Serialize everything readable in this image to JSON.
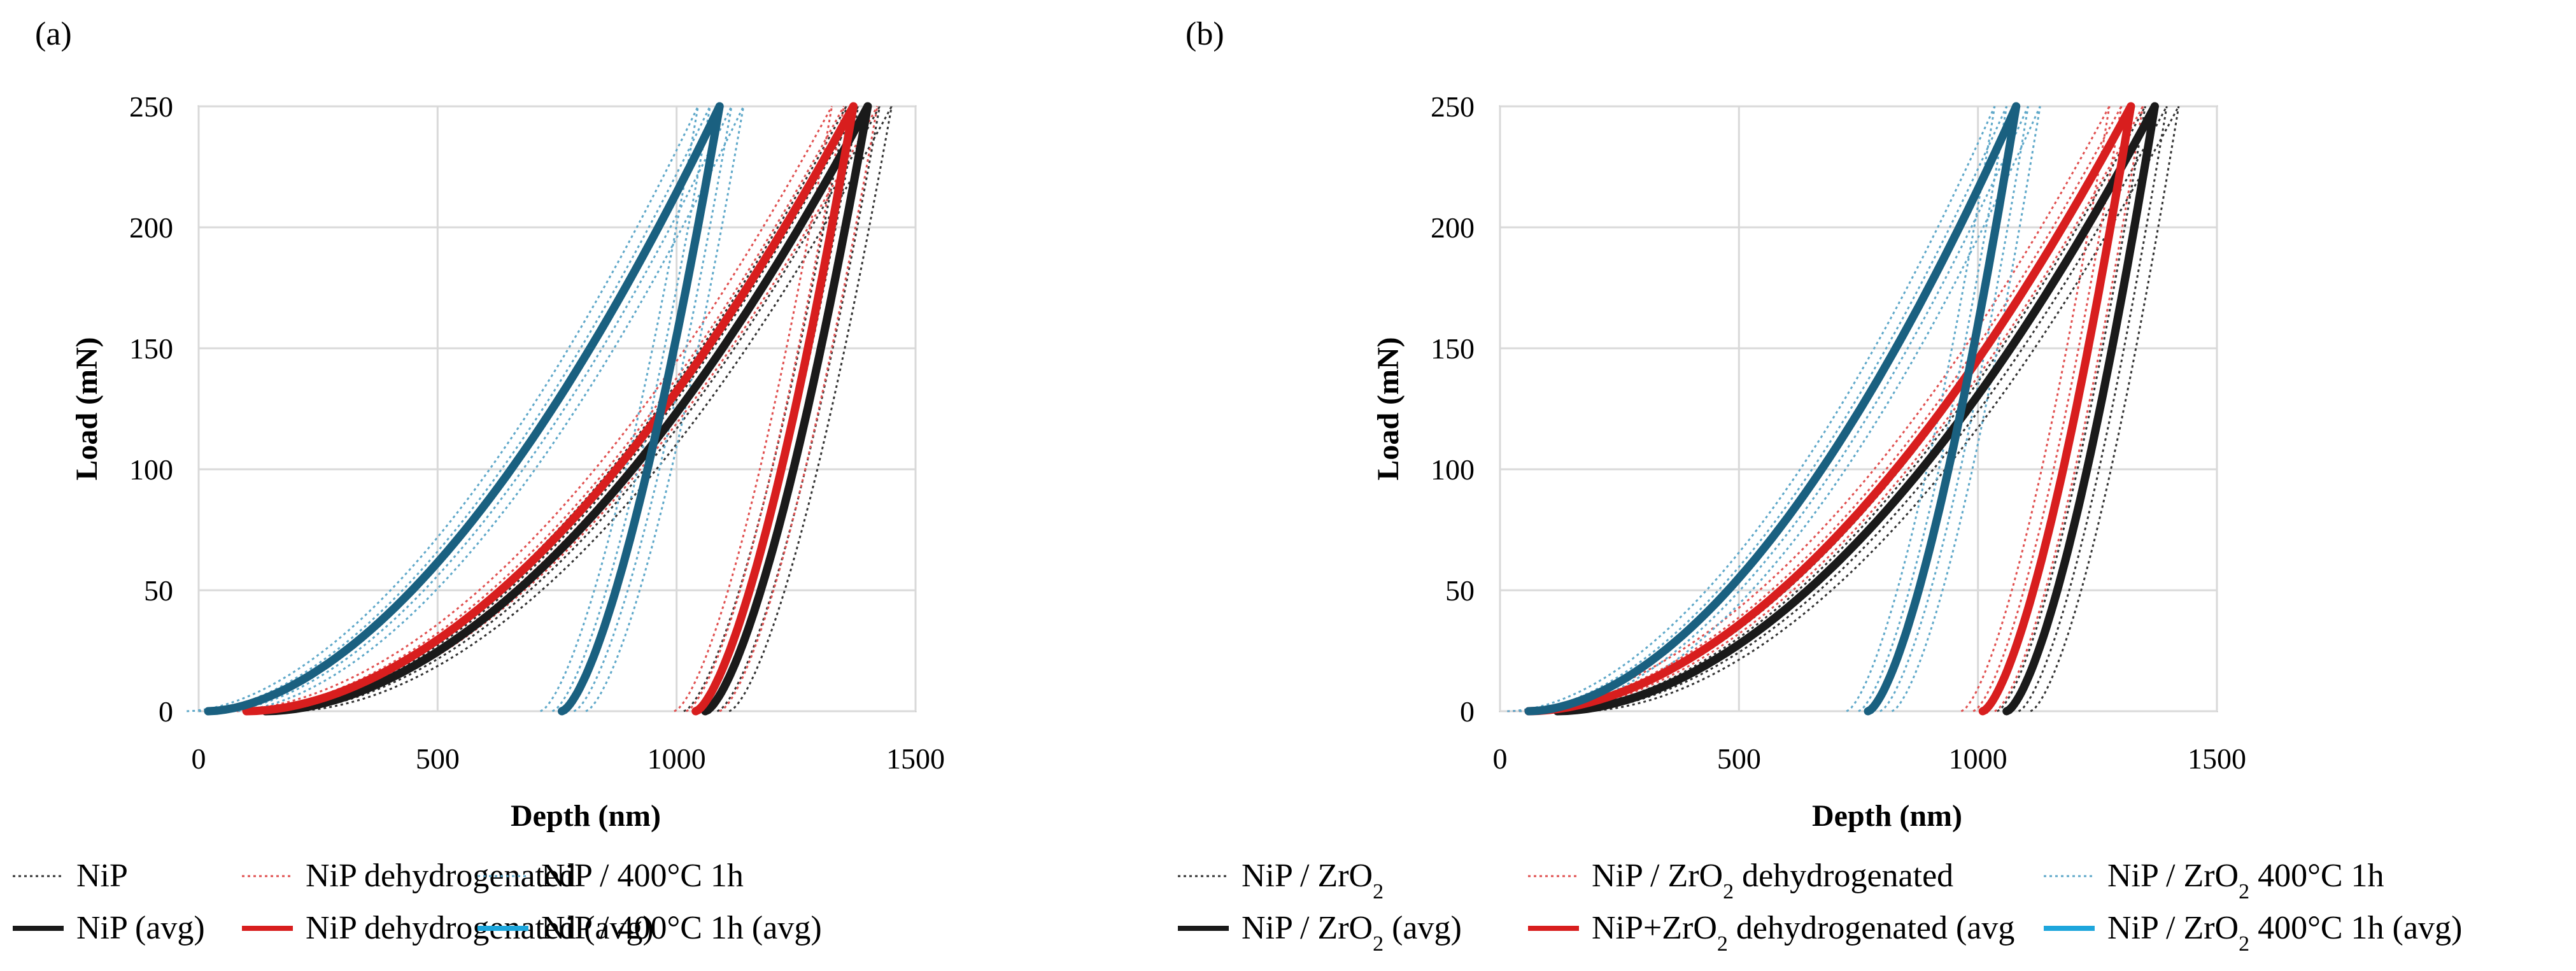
{
  "colors": {
    "NiP": "#1a1a1a",
    "NiP_dehydrogenated": "#d81e1e",
    "NiP_400C": "#1a6080",
    "NiP_400C_thin": "#5fa8c9",
    "NiP_400C_legend": "#1ea6dc",
    "NiP_dehydrogenated_thin": "#e05050",
    "NiP_thin": "#333333",
    "grid": "#d9d9d9",
    "axis": "#bfbfbf"
  },
  "chart_data": [
    {
      "panel_label": "(a)",
      "type": "line",
      "xlabel": "Depth (nm)",
      "ylabel": "Load (mN)",
      "xlim": [
        0,
        1500
      ],
      "ylim": [
        0,
        250
      ],
      "x_ticks": [
        "0",
        "500",
        "1000",
        "1500"
      ],
      "y_ticks": [
        "0",
        "50",
        "100",
        "150",
        "200",
        "250"
      ],
      "grid": true,
      "series": [
        {
          "name": "NiP (avg)",
          "color_key": "NiP",
          "loading": {
            "h0": 140,
            "hmax": 1400,
            "pmax": 250,
            "exp": 1.85
          },
          "unloading": {
            "hf": 1060,
            "hmax": 1400,
            "pmax": 250,
            "m": 1.5
          }
        },
        {
          "name": "NiP dehydrogenated (avg)",
          "color_key": "NiP_dehydrogenated",
          "loading": {
            "h0": 100,
            "hmax": 1370,
            "pmax": 250,
            "exp": 1.85
          },
          "unloading": {
            "hf": 1040,
            "hmax": 1370,
            "pmax": 250,
            "m": 1.5
          }
        },
        {
          "name": "NiP / 400°C 1h (avg)",
          "color_key": "NiP_400C",
          "loading": {
            "h0": 20,
            "hmax": 1090,
            "pmax": 250,
            "exp": 1.75
          },
          "unloading": {
            "hf": 760,
            "hmax": 1090,
            "pmax": 250,
            "m": 1.5
          }
        }
      ],
      "legend": [
        {
          "label": "NiP",
          "style": "dotted",
          "color_key": "NiP_thin"
        },
        {
          "label": "NiP dehydrogenated",
          "style": "dotted",
          "color_key": "NiP_dehydrogenated_thin"
        },
        {
          "label": "NiP / 400°C 1h",
          "style": "dotted",
          "color_key": "NiP_400C_thin"
        },
        {
          "label": "NiP (avg)",
          "style": "solid",
          "color_key": "NiP"
        },
        {
          "label": "NiP dehydrogenated (avg)",
          "style": "solid",
          "color_key": "NiP_dehydrogenated"
        },
        {
          "label": "NiP / 400°C 1h (avg)",
          "style": "solid",
          "color_key": "NiP_400C_legend"
        }
      ]
    },
    {
      "panel_label": "(b)",
      "type": "line",
      "xlabel": "Depth (nm)",
      "ylabel": "Load (mN)",
      "xlim": [
        0,
        1500
      ],
      "ylim": [
        0,
        250
      ],
      "x_ticks": [
        "0",
        "500",
        "1000",
        "1500"
      ],
      "y_ticks": [
        "0",
        "50",
        "100",
        "150",
        "200",
        "250"
      ],
      "grid": true,
      "series": [
        {
          "name": "NiP / ZrO2 (avg)",
          "color_key": "NiP",
          "loading": {
            "h0": 120,
            "hmax": 1370,
            "pmax": 250,
            "exp": 1.85
          },
          "unloading": {
            "hf": 1060,
            "hmax": 1370,
            "pmax": 250,
            "m": 1.5
          }
        },
        {
          "name": "NiP+ZrO2 dehydrogenated (avg",
          "color_key": "NiP_dehydrogenated",
          "loading": {
            "h0": 60,
            "hmax": 1320,
            "pmax": 250,
            "exp": 1.85
          },
          "unloading": {
            "hf": 1010,
            "hmax": 1320,
            "pmax": 250,
            "m": 1.5
          }
        },
        {
          "name": "NiP / ZrO2 400°C 1h (avg)",
          "color_key": "NiP_400C",
          "loading": {
            "h0": 60,
            "hmax": 1080,
            "pmax": 250,
            "exp": 1.8
          },
          "unloading": {
            "hf": 770,
            "hmax": 1080,
            "pmax": 250,
            "m": 1.5
          }
        }
      ],
      "legend": [
        {
          "label_main": "NiP / ZrO",
          "label_sub": "2",
          "label_tail": "",
          "style": "dotted",
          "color_key": "NiP_thin"
        },
        {
          "label_main": "NiP / ZrO",
          "label_sub": "2",
          "label_tail": " dehydrogenated",
          "style": "dotted",
          "color_key": "NiP_dehydrogenated_thin"
        },
        {
          "label_main": "NiP / ZrO",
          "label_sub": "2",
          "label_tail": " 400°C 1h",
          "style": "dotted",
          "color_key": "NiP_400C_thin"
        },
        {
          "label_main": "NiP / ZrO",
          "label_sub": "2",
          "label_tail": " (avg)",
          "style": "solid",
          "color_key": "NiP"
        },
        {
          "label_main": "NiP+ZrO",
          "label_sub": "2",
          "label_tail": " dehydrogenated (avg",
          "style": "solid",
          "color_key": "NiP_dehydrogenated"
        },
        {
          "label_main": "NiP / ZrO",
          "label_sub": "2",
          "label_tail": " 400°C 1h (avg)",
          "style": "solid",
          "color_key": "NiP_400C_legend"
        }
      ]
    }
  ]
}
